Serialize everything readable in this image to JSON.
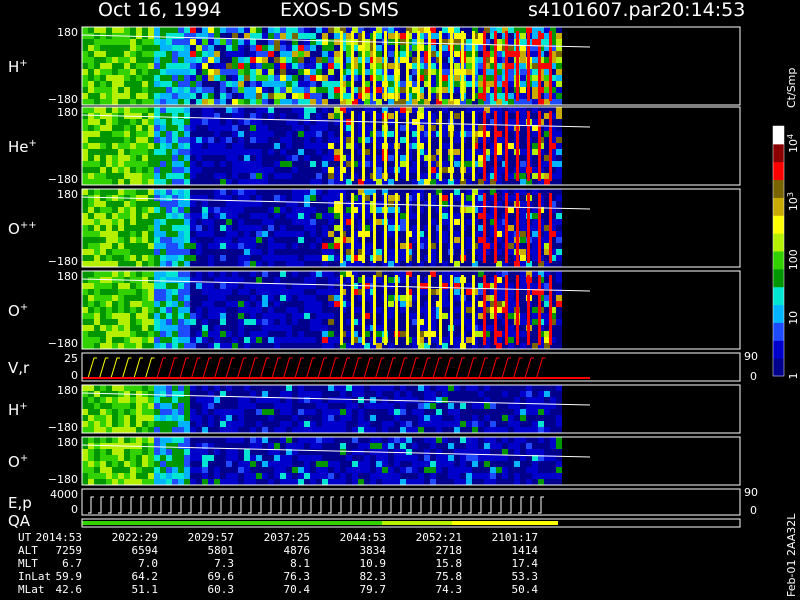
{
  "header": {
    "date": "Oct 16, 1994",
    "instrument": "EXOS-D SMS",
    "file": "s4101607.par",
    "time": "20:14:53"
  },
  "chart_data": {
    "type": "heatmap",
    "panels": [
      {
        "id": "h-plus-pitch",
        "label": "H",
        "sup": "+",
        "ytop": "180",
        "ybot": "−180",
        "ylim": [
          -180,
          180
        ]
      },
      {
        "id": "he-plus-pitch",
        "label": "He",
        "sup": "+",
        "ytop": "180",
        "ybot": "−180",
        "ylim": [
          -180,
          180
        ]
      },
      {
        "id": "o-plusplus-pitch",
        "label": "O",
        "sup": "++",
        "ytop": "180",
        "ybot": "−180",
        "ylim": [
          -180,
          180
        ]
      },
      {
        "id": "o-plus-pitch",
        "label": "O",
        "sup": "+",
        "ytop": "180",
        "ybot": "−180",
        "ylim": [
          -180,
          180
        ]
      },
      {
        "id": "vr",
        "label": "V,r",
        "sup": "",
        "ytop": "25",
        "ybot": "0",
        "ylim": [
          0,
          25
        ],
        "right_top": "90",
        "right_bot": "0"
      },
      {
        "id": "h-plus-2",
        "label": "H",
        "sup": "+",
        "ytop": "180",
        "ybot": "−180",
        "ylim": [
          -180,
          180
        ]
      },
      {
        "id": "o-plus-2",
        "label": "O",
        "sup": "+",
        "ytop": "180",
        "ybot": "−180",
        "ylim": [
          -180,
          180
        ]
      },
      {
        "id": "ep",
        "label": "E,p",
        "sup": "",
        "ytop": "4000",
        "ybot": "0",
        "ylim": [
          0,
          4000
        ],
        "right_top": "90",
        "right_bot": "0"
      },
      {
        "id": "qa",
        "label": "QA",
        "sup": "",
        "ytop": "",
        "ybot": ""
      }
    ],
    "colorbar": {
      "units": "Ct/Smp",
      "ticks": [
        {
          "text": "1",
          "v": 1
        },
        {
          "text": "10",
          "v": 10
        },
        {
          "text": "100",
          "v": 100
        },
        {
          "text": "10",
          "sup": "3",
          "v": 1000
        },
        {
          "text": "10",
          "sup": "4",
          "v": 10000
        }
      ],
      "range": [
        1,
        20000
      ],
      "log": true,
      "colors": [
        "#00008c",
        "#0000cd",
        "#1e4bff",
        "#00b4ff",
        "#00e6d2",
        "#009600",
        "#32d200",
        "#b4f000",
        "#ffff00",
        "#c8aa00",
        "#786400",
        "#ff0000",
        "#8b0000",
        "#ffffff"
      ]
    },
    "orbit": {
      "rows": [
        "UT",
        "ALT",
        "MLT",
        "InLat",
        "MLat"
      ],
      "columns": [
        [
          "2014:53",
          "7259",
          "6.7",
          "59.9",
          "42.6"
        ],
        [
          "2022:29",
          "6594",
          "7.0",
          "64.2",
          "51.1"
        ],
        [
          "2029:57",
          "5801",
          "7.3",
          "69.6",
          "60.3"
        ],
        [
          "2037:25",
          "4876",
          "8.1",
          "76.3",
          "70.4"
        ],
        [
          "2044:53",
          "3834",
          "10.9",
          "82.3",
          "79.7"
        ],
        [
          "2052:21",
          "2718",
          "15.8",
          "75.8",
          "74.3"
        ],
        [
          "2101:17",
          "1414",
          "17.4",
          "53.3",
          "50.4"
        ]
      ]
    },
    "side_note": "Feb-01 2AA32L"
  }
}
